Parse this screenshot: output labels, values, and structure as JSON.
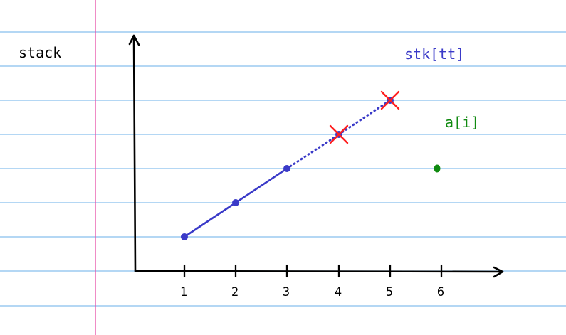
{
  "title": "stack",
  "x_ticks": [
    "1",
    "2",
    "3",
    "4",
    "5",
    "6"
  ],
  "stack_points": [
    {
      "x": 1,
      "level": 1
    },
    {
      "x": 2,
      "level": 2
    },
    {
      "x": 3,
      "level": 3
    },
    {
      "x": 4,
      "level": 4,
      "popped": true
    },
    {
      "x": 5,
      "level": 5,
      "popped": true
    }
  ],
  "new_point": {
    "x": 6,
    "level": 3
  },
  "labels": {
    "stack_top": "stk[tt]",
    "new_element": "a[i]"
  },
  "colors": {
    "ruled_line": "#87bfee",
    "margin_line": "#e64fa8",
    "stack": "#3a3ac8",
    "pop_mark": "#ff1f1f",
    "new_element": "#108a10",
    "axis": "#000000"
  }
}
